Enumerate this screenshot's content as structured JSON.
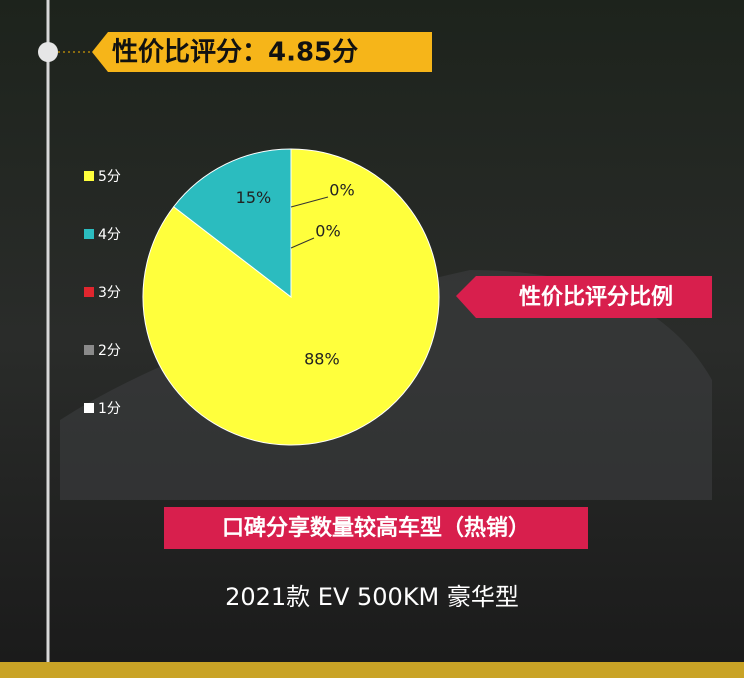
{
  "chart_data": {
    "type": "pie",
    "title": "性价比评分：4.85分",
    "subtitle": "性价比评分比例",
    "annotations": [
      "口碑分享数量较高车型（热销）",
      "2021款 EV 500KM 豪华型"
    ],
    "categories": [
      "5分",
      "4分",
      "3分",
      "2分",
      "1分"
    ],
    "values": [
      88,
      15,
      0,
      0,
      null
    ],
    "value_labels": [
      "88%",
      "15%",
      "0%",
      "0%",
      null
    ],
    "colors": [
      "#ffff3c",
      "#2bbcbf",
      "#e0262e",
      "#8a8a8a",
      "#ffffff"
    ],
    "legend": "left"
  }
}
